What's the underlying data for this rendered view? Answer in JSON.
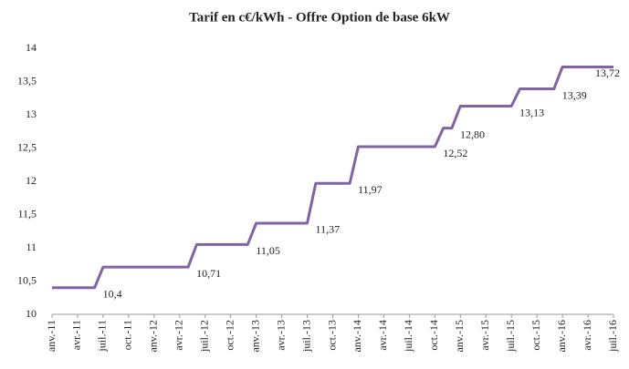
{
  "chart_data": {
    "type": "line",
    "title": "Tarif en c€/kWh - Offre Option de base 6kW",
    "categories": [
      "anv.-11",
      null,
      null,
      "avr.-11",
      null,
      null,
      "juil.-11",
      null,
      null,
      "oct.-11",
      null,
      null,
      "anv.-12",
      null,
      null,
      "avr.-12",
      null,
      null,
      "juil.-12",
      null,
      null,
      "oct.-12",
      null,
      null,
      "anv.-13",
      null,
      null,
      "avr.-13",
      null,
      null,
      "juil.-13",
      null,
      null,
      "oct.-13",
      null,
      null,
      "anv.-14",
      null,
      null,
      "avr.-14",
      null,
      null,
      "juil.-14",
      null,
      null,
      "oct.-14",
      null,
      null,
      "anv.-15",
      null,
      null,
      "avr.-15",
      null,
      null,
      "juil.-15",
      null,
      null,
      "oct.-15",
      null,
      null,
      "anv.-16",
      null,
      null,
      "avr.-16",
      null,
      null,
      "juil.-16"
    ],
    "series": [
      {
        "color": "#8064a2",
        "values": [
          10.4,
          10.4,
          10.4,
          10.4,
          10.4,
          10.4,
          10.71,
          10.71,
          10.71,
          10.71,
          10.71,
          10.71,
          10.71,
          10.71,
          10.71,
          10.71,
          10.71,
          11.05,
          11.05,
          11.05,
          11.05,
          11.05,
          11.05,
          11.05,
          11.37,
          11.37,
          11.37,
          11.37,
          11.37,
          11.37,
          11.37,
          11.97,
          11.97,
          11.97,
          11.97,
          11.97,
          12.52,
          12.52,
          12.52,
          12.52,
          12.52,
          12.52,
          12.52,
          12.52,
          12.52,
          12.52,
          12.8,
          12.8,
          13.13,
          13.13,
          13.13,
          13.13,
          13.13,
          13.13,
          13.13,
          13.39,
          13.39,
          13.39,
          13.39,
          13.39,
          13.72,
          13.72,
          13.72,
          13.72,
          13.72,
          13.72,
          13.72
        ],
        "value_labels": [
          null,
          null,
          null,
          null,
          null,
          "10,4",
          null,
          null,
          null,
          null,
          null,
          null,
          null,
          null,
          null,
          null,
          "10,71",
          null,
          null,
          null,
          null,
          null,
          null,
          "11,05",
          null,
          null,
          null,
          null,
          null,
          null,
          "11,37",
          null,
          null,
          null,
          null,
          "11,97",
          null,
          null,
          null,
          null,
          null,
          null,
          null,
          null,
          null,
          "12,52",
          null,
          "12,80",
          null,
          null,
          null,
          null,
          null,
          null,
          "13,13",
          null,
          null,
          null,
          null,
          "13,39",
          null,
          null,
          null,
          null,
          null,
          null,
          "13,72"
        ]
      }
    ],
    "ylim": [
      10,
      14
    ],
    "yticks": [
      10,
      {
        "value": 10.5,
        "label": "10,5"
      },
      11,
      {
        "value": 11.5,
        "label": "11,5"
      },
      12,
      {
        "value": 12.5,
        "label": "12,5"
      },
      13,
      {
        "value": 13.5,
        "label": "13,5"
      },
      14
    ]
  }
}
